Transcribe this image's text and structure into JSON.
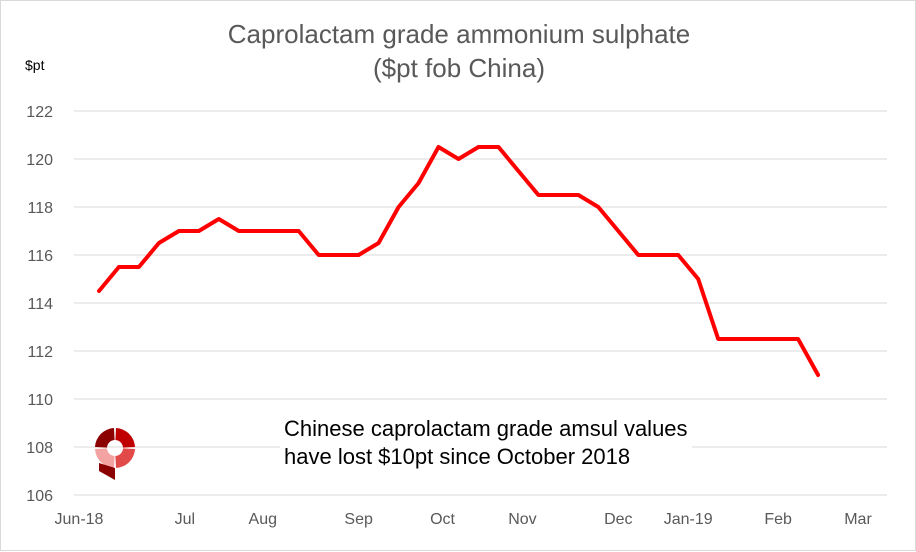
{
  "chart_data": {
    "type": "line",
    "title": [
      "Caprolactam grade ammonium sulphate",
      "($pt fob China)"
    ],
    "ylabel": "$pt",
    "xlabel": "",
    "ylim": [
      106,
      122
    ],
    "yticks": [
      106,
      108,
      110,
      112,
      114,
      116,
      118,
      120,
      122
    ],
    "xlim": [
      0,
      39
    ],
    "xticks": [
      {
        "label": "Jun-18",
        "pos": 0
      },
      {
        "label": "Jul",
        "pos": 5.3
      },
      {
        "label": "Aug",
        "pos": 9.2
      },
      {
        "label": "Sep",
        "pos": 14.0
      },
      {
        "label": "Oct",
        "pos": 18.2
      },
      {
        "label": "Nov",
        "pos": 22.2
      },
      {
        "label": "Dec",
        "pos": 27.0
      },
      {
        "label": "Jan-19",
        "pos": 30.5
      },
      {
        "label": "Feb",
        "pos": 35.0
      },
      {
        "label": "Mar",
        "pos": 39.0
      }
    ],
    "grid": true,
    "series": [
      {
        "name": "Caprolactam grade ammonium sulphate",
        "color": "#ff0000",
        "x": [
          1,
          2,
          3,
          4,
          5,
          6,
          7,
          8,
          9,
          10,
          11,
          12,
          13,
          14,
          15,
          16,
          17,
          18,
          19,
          20,
          21,
          22,
          23,
          24,
          25,
          26,
          27,
          28,
          29,
          30,
          31,
          32,
          33,
          34,
          35,
          36,
          37
        ],
        "values": [
          114.5,
          115.5,
          115.5,
          116.5,
          117,
          117,
          117.5,
          117,
          117,
          117,
          117,
          116,
          116,
          116,
          116.5,
          118,
          119,
          120.5,
          120,
          120.5,
          120.5,
          119.5,
          118.5,
          118.5,
          118.5,
          118,
          117,
          116,
          116,
          116,
          115,
          112.5,
          112.5,
          112.5,
          112.5,
          112.5,
          111
        ]
      }
    ],
    "annotation": [
      "Chinese caprolactam grade amsul values",
      "have lost $10pt since October 2018"
    ]
  },
  "logo": {
    "colors": [
      "#c00000",
      "#e24a4a",
      "#f4a3a3",
      "#8b0000"
    ]
  }
}
